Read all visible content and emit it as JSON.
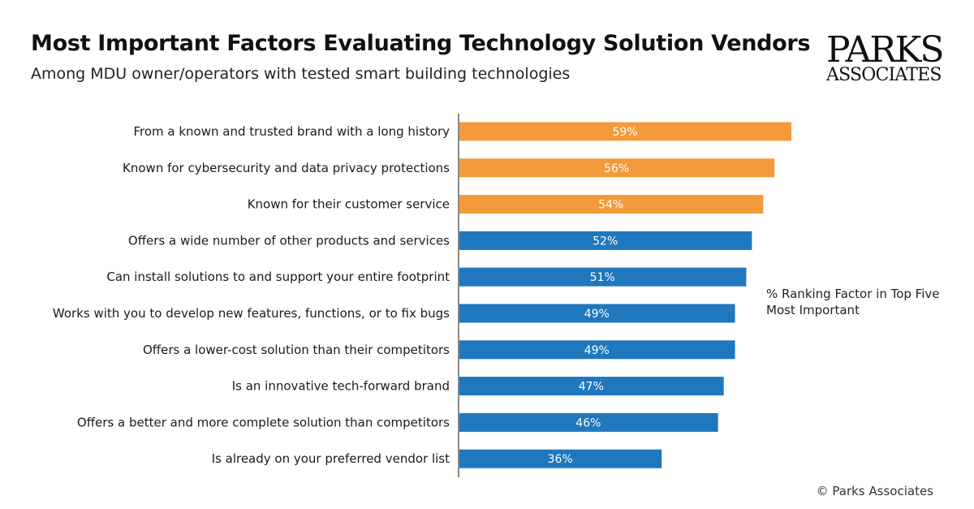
{
  "header": {
    "title": "Most Important Factors Evaluating Technology Solution Vendors",
    "subtitle": "Among MDU owner/operators with tested smart building technologies"
  },
  "logo": {
    "line1": "PARKS",
    "line2": "ASSOCIATES"
  },
  "note": "% Ranking Factor in Top Five Most Important",
  "copyright": "© Parks Associates",
  "colors": {
    "highlight": "#f39a3b",
    "default": "#1f77be",
    "axis": "#888888"
  },
  "chart_data": {
    "type": "bar",
    "orientation": "horizontal",
    "title": "Most Important Factors Evaluating Technology Solution Vendors",
    "subtitle": "Among MDU owner/operators with tested smart building technologies",
    "xlabel": "",
    "ylabel": "",
    "xlim": [
      0,
      70
    ],
    "grid": false,
    "categories": [
      "From a known and trusted brand with a long history",
      "Known for cybersecurity and data privacy protections",
      "Known for their customer service",
      "Offers a wide number of other products and services",
      "Can install solutions to and support your entire footprint",
      "Works with you to develop new features, functions, or to fix bugs",
      "Offers a lower-cost solution than their competitors",
      "Is an innovative tech-forward brand",
      "Offers a better and more complete solution than competitors",
      "Is already on your preferred vendor list"
    ],
    "values": [
      59,
      56,
      54,
      52,
      51,
      49,
      49,
      47,
      46,
      36
    ],
    "data_labels": [
      "59%",
      "56%",
      "54%",
      "52%",
      "51%",
      "49%",
      "49%",
      "47%",
      "46%",
      "36%"
    ],
    "highlighted": [
      true,
      true,
      true,
      false,
      false,
      false,
      false,
      false,
      false,
      false
    ]
  }
}
